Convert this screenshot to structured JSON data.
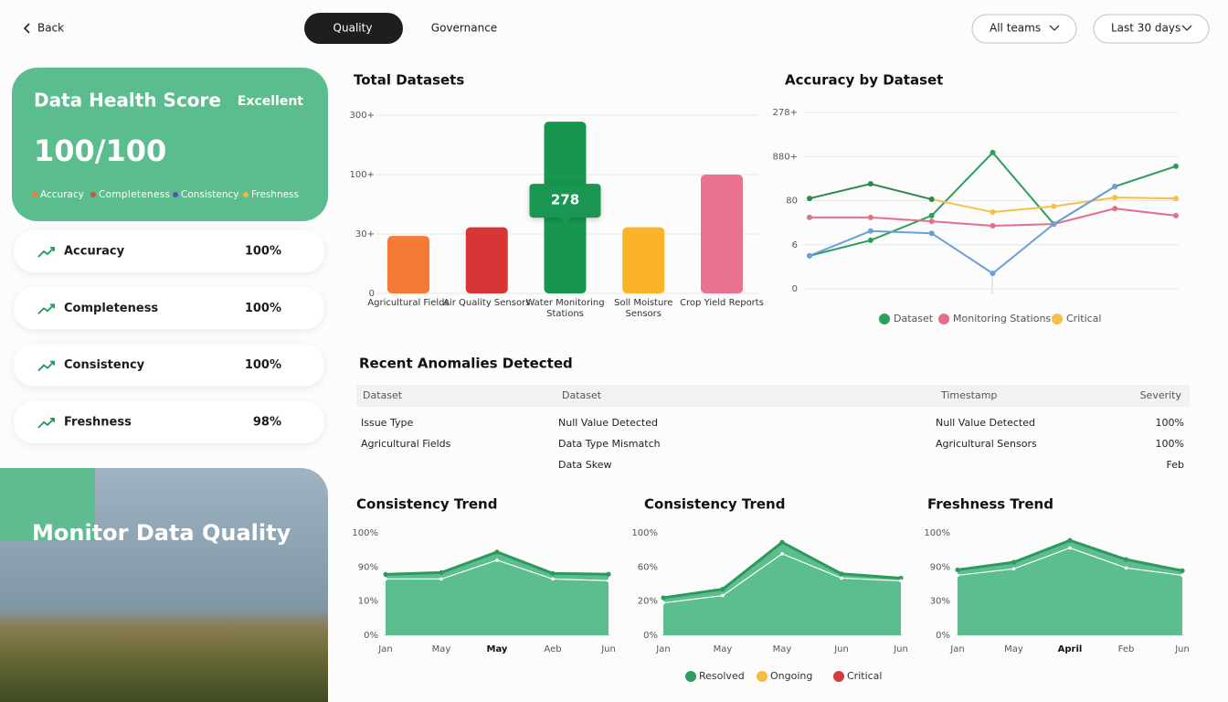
{
  "nav": {
    "back": "Back",
    "tabs": [
      "Quality",
      "Governance"
    ],
    "active_tab": 0,
    "filters": [
      "All teams",
      "Last 30 days"
    ]
  },
  "health": {
    "title": "Data Health Score",
    "rating": "Excellent",
    "score": "100/100",
    "color": "#5bbd8d",
    "legend": [
      {
        "name": "Accuracy",
        "color": "#f07a3a"
      },
      {
        "name": "Completeness",
        "color": "#c9553a"
      },
      {
        "name": "Consistency",
        "color": "#5a4fb0"
      },
      {
        "name": "Freshness",
        "color": "#f3b43b"
      }
    ]
  },
  "metrics": [
    {
      "name": "Accuracy",
      "value": "100%"
    },
    {
      "name": "Completeness",
      "value": "100%"
    },
    {
      "name": "Consistency",
      "value": "100%"
    },
    {
      "name": "Freshness",
      "value": "98%"
    }
  ],
  "banner": {
    "title": "Monitor Data Quality"
  },
  "bar_chart": {
    "type": "bar",
    "title": "Total Datasets",
    "categories": [
      "Agricultural Fields",
      "Air Quality Sensors",
      "Water Monitoring Stations",
      "Soll Moisture Sensors",
      "Crop Yield Reports"
    ],
    "values": [
      29,
      38,
      278,
      38,
      100
    ],
    "colors": [
      "#f47a35",
      "#d83636",
      "#17964f",
      "#fbb32a",
      "#e8728f"
    ],
    "highlight": 2,
    "yticks": [
      0,
      {
        "value": 30,
        "label": "30+"
      },
      {
        "value": 100,
        "label": "100+"
      },
      {
        "value": 300,
        "label": "300+"
      }
    ],
    "grid": true
  },
  "line_chart": {
    "type": "line",
    "title": "Accuracy by Dataset",
    "categories": [
      null,
      null,
      null,
      null,
      null,
      null,
      null
    ],
    "ylim": [
      0,
      4
    ],
    "yticks": [
      0,
      {
        "value": 1,
        "label": "6"
      },
      {
        "value": 2,
        "label": "80"
      },
      {
        "value": 3,
        "label": "880+"
      },
      {
        "value": 4,
        "label": "278+"
      }
    ],
    "grid": true,
    "series": [
      {
        "name": "Dataset",
        "color": "#2e9e5e",
        "values": [
          0.75,
          1.1,
          1.66,
          3.09,
          1.47,
          2.32,
          2.78
        ]
      },
      {
        "name": "Monitoring Stations",
        "color": "#e46f88",
        "values": [
          1.62,
          1.62,
          1.53,
          1.43,
          1.47,
          1.82,
          1.66
        ]
      },
      {
        "name": "Critical",
        "color": "#f5c04a",
        "values": [
          null,
          null,
          2.03,
          1.74,
          1.87,
          2.07,
          2.05
        ]
      },
      {
        "color": "#6a9fd8",
        "values": [
          0.75,
          1.31,
          1.26,
          0.35,
          1.47,
          2.32,
          null
        ]
      },
      {
        "color": "#2a8a52",
        "values": [
          2.05,
          2.38,
          2.03,
          null,
          null,
          null,
          null
        ]
      }
    ]
  },
  "anomalies": {
    "title": "Recent Anomalies Detected",
    "columns": [
      "Dataset",
      "Dataset",
      "Timestamp",
      "Severity"
    ],
    "rows": [
      [
        "Issue Type",
        "Null Value Detected",
        "Null Value Detected",
        "100%"
      ],
      [
        "Agricultural Fields",
        "Data Type Mismatch",
        "Agricultural Sensors",
        "100%"
      ],
      [
        null,
        "Data Skew",
        null,
        "Feb"
      ]
    ]
  },
  "trends": [
    {
      "type": "area",
      "title": "Consistency Trend",
      "categories": [
        "Jan",
        "May",
        "May",
        "Aeb",
        "Jun"
      ],
      "highlight": 2,
      "yticks": [
        {
          "value": 0,
          "label": "0%"
        },
        {
          "value": 10,
          "label": "10%"
        },
        {
          "value": 90,
          "label": "90%"
        },
        {
          "value": 100,
          "label": "100%"
        }
      ],
      "series": [
        {
          "color": "#2c9a5c",
          "values": [
            72.7,
            77,
            94.4,
            75,
            73
          ]
        },
        {
          "color": "#ffffff",
          "values": [
            62,
            62,
            92,
            62,
            58
          ]
        }
      ]
    },
    {
      "type": "area",
      "title": "Consistency Trend",
      "categories": [
        "Jan",
        "May",
        "May",
        "Jun",
        "Jun"
      ],
      "yticks": [
        {
          "value": 0,
          "label": "0%"
        },
        {
          "value": 20,
          "label": "20%"
        },
        {
          "value": 60,
          "label": "60%"
        },
        {
          "value": 100,
          "label": "100%"
        }
      ],
      "series": [
        {
          "color": "#2c9a5c",
          "values": [
            24,
            34,
            89,
            52,
            47
          ]
        },
        {
          "color": "#ffffff",
          "values": [
            19,
            26.5,
            75.6,
            47,
            43.8
          ]
        }
      ]
    },
    {
      "type": "area",
      "title": "Freshness Trend",
      "categories": [
        "Jan",
        "May",
        "April",
        "Feb",
        "Jun"
      ],
      "highlight": 2,
      "yticks": [
        {
          "value": 0,
          "label": "0%"
        },
        {
          "value": 30,
          "label": "30%"
        },
        {
          "value": 90,
          "label": "90%"
        },
        {
          "value": 100,
          "label": "100%"
        }
      ],
      "series": [
        {
          "color": "#2c9a5c",
          "values": [
            85,
            91.4,
            97.8,
            92.2,
            83.5
          ]
        },
        {
          "color": "#ffffff",
          "values": [
            75.4,
            86.8,
            95.6,
            88.4,
            75.4
          ]
        }
      ]
    }
  ],
  "trend_legend": [
    {
      "name": "Resolved",
      "color": "#2e9e5e"
    },
    {
      "name": "Ongoing",
      "color": "#f5bf3c"
    },
    {
      "name": "Critical",
      "color": "#d63a3a"
    }
  ]
}
